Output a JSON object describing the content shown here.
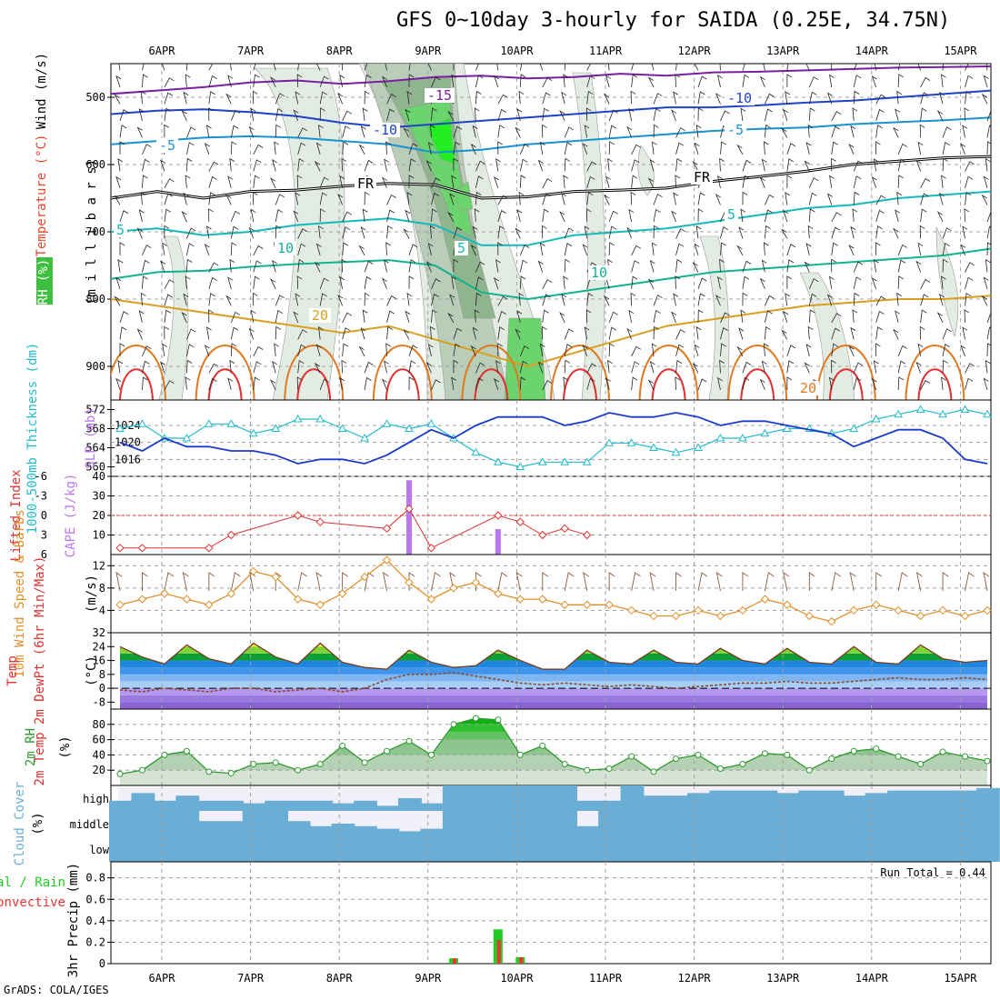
{
  "title": "GFS 0~10day 3-hourly for SAIDA (0.25E, 34.75N)",
  "footer": "GrADS: COLA/IGES",
  "colors": {
    "grid": "#a0a0a0",
    "rh_light": "#e3ece3",
    "rh_mid": "#b9cdb9",
    "rh_dark": "#8fb58f",
    "rh_green": "#6cd46c",
    "rh_bright": "#22ee22",
    "thickness": "#22bbcc",
    "slp": "#1a3acc",
    "lifted": "#dd3333",
    "cape": "#bb77ee",
    "wind": "#e0902a",
    "dewpt": "#8b4a2a",
    "rh2m": "#2f9a2f",
    "cloud": "#6aaed6",
    "cloud_gap": "#f1eff7",
    "precip_total": "#22cc22",
    "precip_conv": "#ee3333"
  },
  "chart_data": [
    {
      "id": "upper",
      "type": "heatmap",
      "title": "Wind (m/s) / Temperature (°C) / RH (%)",
      "ylabel_parts": [
        "RH (%)",
        "Temperature (°C)",
        "Wind (m/s)"
      ],
      "ylabel2": "(m i l l i b a r s)",
      "y_ticks": [
        500,
        600,
        700,
        800,
        900
      ],
      "ylim": [
        950,
        450
      ],
      "x_ticks": [
        "6APR",
        "7APR",
        "8APR",
        "9APR",
        "10APR",
        "11APR",
        "12APR",
        "13APR",
        "14APR",
        "15APR"
      ],
      "contour_labels": [
        "-15",
        "-10",
        "-5",
        "FR",
        "5",
        "10",
        "20"
      ],
      "isotherms": [
        {
          "label": "-15",
          "color": "#7b1fa2",
          "values": [
            495,
            490,
            485,
            478,
            475,
            480,
            476,
            470,
            468,
            472,
            470,
            465,
            468,
            463,
            462,
            460,
            458,
            456,
            455,
            454
          ]
        },
        {
          "label": "-10",
          "color": "#1f43c8",
          "values": [
            525,
            520,
            518,
            522,
            528,
            538,
            545,
            540,
            535,
            530,
            525,
            520,
            515,
            515,
            512,
            508,
            505,
            500,
            495,
            490
          ]
        },
        {
          "label": "-5",
          "color": "#1793d1",
          "values": [
            570,
            565,
            560,
            558,
            560,
            565,
            570,
            582,
            578,
            570,
            565,
            560,
            555,
            550,
            547,
            545,
            540,
            537,
            534,
            530
          ]
        },
        {
          "label": "FR",
          "color": "#000000",
          "values": [
            650,
            640,
            650,
            640,
            638,
            632,
            628,
            630,
            650,
            648,
            640,
            638,
            635,
            625,
            618,
            610,
            600,
            595,
            590,
            588
          ]
        },
        {
          "label": "5",
          "color": "#16b9b9",
          "values": [
            700,
            695,
            705,
            700,
            690,
            685,
            680,
            690,
            720,
            720,
            705,
            700,
            695,
            685,
            675,
            665,
            660,
            650,
            645,
            640
          ]
        },
        {
          "label": "10",
          "color": "#12b38f",
          "values": [
            770,
            760,
            758,
            752,
            748,
            745,
            742,
            750,
            790,
            800,
            790,
            780,
            770,
            760,
            755,
            750,
            745,
            740,
            735,
            725
          ]
        },
        {
          "label": "20",
          "color": "#d8a020",
          "values": [
            800,
            810,
            820,
            830,
            840,
            850,
            840,
            860,
            880,
            900,
            880,
            860,
            840,
            830,
            820,
            810,
            805,
            800,
            800,
            795
          ]
        }
      ]
    },
    {
      "id": "thickness-slp",
      "type": "line",
      "ylabel": "1000-500mb Thickness (dm)",
      "ylabel_right": "SLP (mb)",
      "ylim_thickness": [
        558,
        574
      ],
      "ylim_slp": [
        1012,
        1030
      ],
      "y_ticks_thickness": [
        560,
        564,
        568,
        572
      ],
      "y_ticks_slp": [
        1016,
        1020,
        1024
      ],
      "series": [
        {
          "name": "1000-500mb Thickness",
          "values": [
            568,
            569,
            566,
            566,
            569,
            569,
            567,
            568,
            570,
            570,
            568,
            566,
            569,
            568,
            569,
            566,
            563,
            561,
            560,
            561,
            561,
            561,
            565,
            565,
            564,
            563,
            564,
            566,
            566,
            567,
            568,
            568,
            567,
            568,
            570,
            571,
            572,
            571,
            572,
            571
          ]
        },
        {
          "name": "SLP",
          "values": [
            1020,
            1018,
            1021,
            1019,
            1019,
            1018,
            1018,
            1017,
            1015,
            1016,
            1016,
            1015,
            1017,
            1020,
            1023,
            1021,
            1024,
            1026,
            1026,
            1026,
            1024,
            1025,
            1027,
            1026,
            1026,
            1027,
            1026,
            1024,
            1025,
            1025,
            1024,
            1023,
            1022,
            1019,
            1021,
            1023,
            1023,
            1021,
            1016,
            1015
          ]
        }
      ]
    },
    {
      "id": "lifted-cape",
      "type": "bar",
      "ylabel": "Lifted Index",
      "ylabel_right": "CAPE (J/kg)",
      "li_ticks": [
        "-6",
        "-3",
        "0",
        "3",
        "6"
      ],
      "cape_ticks": [
        10,
        20,
        30,
        40
      ],
      "cape_ylim": [
        0,
        40
      ],
      "series": [
        {
          "name": "Lifted Index",
          "values": [
            5,
            5,
            null,
            null,
            5,
            3,
            null,
            null,
            0,
            1,
            null,
            null,
            2,
            -1,
            5,
            null,
            null,
            0,
            1,
            3,
            2,
            3,
            null,
            null,
            null,
            null,
            null,
            null,
            null,
            null,
            null,
            null,
            null,
            null,
            null,
            null,
            null,
            null,
            null,
            null
          ]
        },
        {
          "name": "CAPE",
          "values": [
            0,
            0,
            0,
            0,
            0,
            0,
            0,
            0,
            0,
            0,
            0,
            0,
            0,
            38,
            0,
            0,
            0,
            13,
            0,
            0,
            0,
            0,
            0,
            0,
            0,
            0,
            0,
            0,
            0,
            0,
            0,
            0,
            0,
            0,
            0,
            0,
            0,
            0,
            0,
            0
          ]
        }
      ]
    },
    {
      "id": "wind10m",
      "type": "line",
      "ylabel": "10m Wind Speed & Barbs",
      "unit": "(m/s)",
      "ylim": [
        0,
        14
      ],
      "y_ticks": [
        4,
        8,
        12
      ],
      "series": [
        {
          "name": "10m Wind Speed",
          "values": [
            5,
            6,
            7,
            6,
            5,
            7,
            11,
            10,
            6,
            5,
            7,
            10,
            13,
            9,
            6,
            8,
            9,
            7,
            6,
            6,
            5,
            5,
            5,
            4,
            3,
            3,
            4,
            3,
            4,
            6,
            5,
            3,
            2,
            4,
            5,
            4,
            3,
            4,
            3,
            4
          ]
        }
      ]
    },
    {
      "id": "temp2m",
      "type": "area",
      "ylabel": "2m Temp 2m DewPt (6hr Min/Max)",
      "unit": "(°C)",
      "ylim": [
        -12,
        32
      ],
      "y_ticks": [
        -8,
        0,
        8,
        16,
        24,
        32
      ],
      "y_tick_labels": [
        "-8",
        "0",
        "8",
        "16",
        "24",
        "32"
      ],
      "series": [
        {
          "name": "2m Temp",
          "values": [
            24,
            18,
            14,
            25,
            17,
            14,
            26,
            18,
            14,
            26,
            15,
            12,
            11,
            22,
            15,
            12,
            13,
            22,
            16,
            11,
            11,
            22,
            15,
            14,
            22,
            15,
            14,
            23,
            16,
            14,
            23,
            15,
            14,
            24,
            15,
            14,
            25,
            17,
            15,
            16
          ]
        },
        {
          "name": "2m DewPt",
          "values": [
            -1,
            -2,
            0,
            -1,
            -2,
            0,
            0,
            -2,
            -1,
            0,
            -2,
            0,
            5,
            8,
            8,
            9,
            7,
            5,
            3,
            2,
            3,
            2,
            1,
            2,
            1,
            0,
            1,
            2,
            3,
            3,
            4,
            3,
            3,
            4,
            5,
            6,
            5,
            5,
            6,
            5
          ]
        }
      ]
    },
    {
      "id": "rh2m",
      "type": "area",
      "ylabel": "2m RH",
      "unit": "(%)",
      "ylim": [
        0,
        100
      ],
      "y_ticks": [
        20,
        40,
        60,
        80
      ],
      "series": [
        {
          "name": "2m RH",
          "values": [
            15,
            20,
            40,
            45,
            18,
            16,
            28,
            30,
            20,
            28,
            52,
            30,
            45,
            58,
            40,
            80,
            88,
            86,
            40,
            52,
            28,
            20,
            22,
            38,
            18,
            35,
            40,
            22,
            28,
            42,
            40,
            20,
            35,
            45,
            48,
            38,
            28,
            44,
            38,
            32
          ]
        }
      ]
    },
    {
      "id": "cloud",
      "type": "heatmap",
      "ylabel": "Cloud Cover",
      "unit": "(%)",
      "levels": [
        "high",
        "middle",
        "low"
      ],
      "series": [
        {
          "name": "high",
          "values": [
            40,
            70,
            40,
            60,
            40,
            40,
            30,
            40,
            40,
            40,
            30,
            40,
            20,
            50,
            30,
            100,
            100,
            100,
            100,
            100,
            100,
            40,
            40,
            100,
            60,
            60,
            70,
            80,
            80,
            80,
            70,
            80,
            80,
            60,
            70,
            80,
            80,
            80,
            80,
            90
          ]
        },
        {
          "name": "middle",
          "values": [
            100,
            100,
            100,
            100,
            60,
            60,
            100,
            100,
            60,
            40,
            50,
            40,
            30,
            20,
            30,
            100,
            100,
            100,
            100,
            100,
            100,
            40,
            100,
            100,
            100,
            100,
            100,
            100,
            100,
            100,
            100,
            100,
            100,
            100,
            100,
            100,
            100,
            100,
            100,
            100
          ]
        },
        {
          "name": "low",
          "values": [
            100,
            100,
            100,
            100,
            100,
            100,
            100,
            100,
            100,
            100,
            100,
            100,
            100,
            100,
            100,
            100,
            100,
            100,
            100,
            100,
            100,
            100,
            100,
            100,
            100,
            100,
            100,
            100,
            100,
            100,
            100,
            100,
            100,
            100,
            100,
            100,
            100,
            100,
            100,
            100
          ]
        }
      ]
    },
    {
      "id": "precip",
      "type": "bar",
      "ylabel": "3hr Precip (mm)",
      "ylabel_left": "Total / Rain",
      "ylabel_left2": "Convective",
      "annotation": "Run Total = 0.44",
      "ylim": [
        0,
        0.95
      ],
      "y_ticks": [
        0,
        0.2,
        0.4,
        0.6,
        0.8
      ],
      "y_tick_labels": [
        "0",
        "0.2",
        "0.4",
        "0.6",
        "0.8"
      ],
      "series": [
        {
          "name": "Total",
          "values": [
            0,
            0,
            0,
            0,
            0,
            0,
            0,
            0,
            0,
            0,
            0,
            0,
            0,
            0,
            0,
            0.05,
            0,
            0.32,
            0.06,
            0,
            0,
            0,
            0,
            0,
            0,
            0,
            0,
            0,
            0,
            0,
            0,
            0,
            0,
            0,
            0,
            0,
            0,
            0,
            0,
            0
          ]
        },
        {
          "name": "Convective",
          "values": [
            0,
            0,
            0,
            0,
            0,
            0,
            0,
            0,
            0,
            0,
            0,
            0,
            0,
            0,
            0,
            0.05,
            0,
            0.22,
            0.06,
            0,
            0,
            0,
            0,
            0,
            0,
            0,
            0,
            0,
            0,
            0,
            0,
            0,
            0,
            0,
            0,
            0,
            0,
            0,
            0,
            0
          ]
        }
      ]
    }
  ]
}
